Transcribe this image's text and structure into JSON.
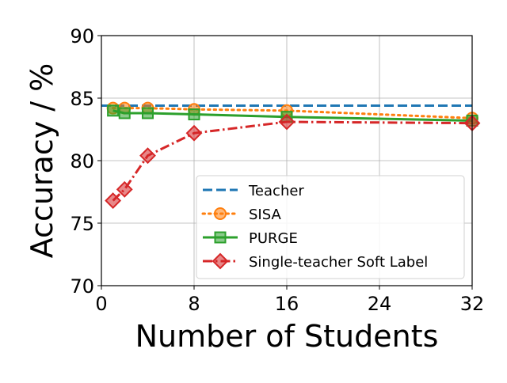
{
  "chart_data": {
    "type": "line",
    "xlabel": "Number of Students",
    "ylabel": "Accuracy / %",
    "xlim": [
      0,
      32
    ],
    "ylim": [
      70,
      90
    ],
    "xticks": [
      0,
      8,
      16,
      24,
      32
    ],
    "yticks": [
      70,
      75,
      80,
      85,
      90
    ],
    "grid": true,
    "legend_position": "lower-right",
    "series": [
      {
        "name": "Teacher",
        "color": "#1f77b4",
        "style": "dashed",
        "marker": "none",
        "x": [
          0,
          32
        ],
        "y": [
          84.4,
          84.4
        ]
      },
      {
        "name": "SISA",
        "color": "#ff7f0e",
        "style": "dotted",
        "marker": "circle",
        "x": [
          1,
          2,
          4,
          8,
          16,
          32
        ],
        "y": [
          84.2,
          84.2,
          84.2,
          84.1,
          84.0,
          83.4
        ]
      },
      {
        "name": "PURGE",
        "color": "#2ca02c",
        "style": "solid",
        "marker": "square",
        "x": [
          1,
          2,
          4,
          8,
          16,
          32
        ],
        "y": [
          84.0,
          83.8,
          83.8,
          83.7,
          83.5,
          83.2
        ]
      },
      {
        "name": "Single-teacher Soft Label",
        "color": "#d62728",
        "style": "dashdot",
        "marker": "diamond",
        "x": [
          1,
          2,
          4,
          8,
          16,
          32
        ],
        "y": [
          76.8,
          77.7,
          80.4,
          82.2,
          83.1,
          83.0
        ]
      }
    ]
  }
}
